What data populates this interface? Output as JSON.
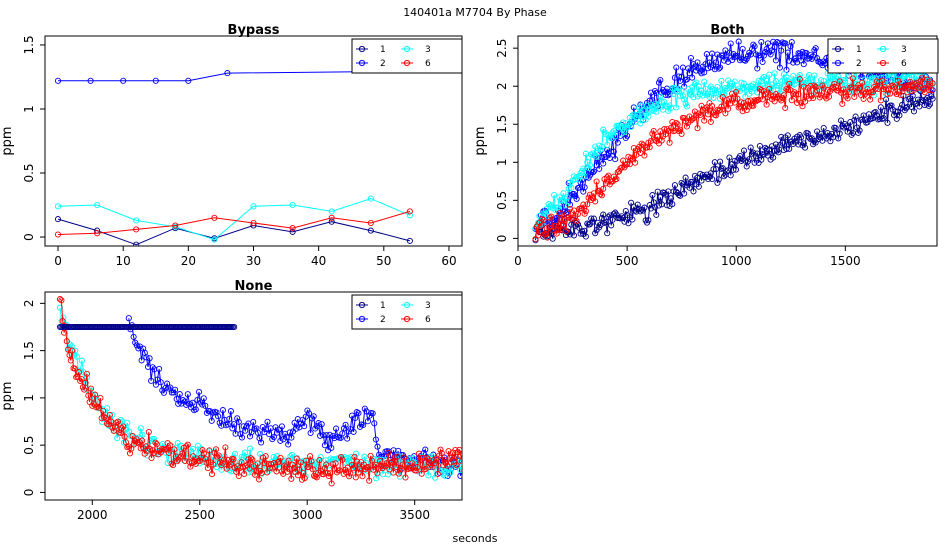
{
  "figure": {
    "main_title": "140401a    M7704   By Phase",
    "xlabel": "seconds"
  },
  "colors": {
    "1": "#00008b",
    "2": "#0000ff",
    "3": "#00ffff",
    "6": "#ff0000"
  },
  "chart_data": [
    {
      "id": "bypass",
      "type": "line",
      "title": "Bypass",
      "xlabel": "",
      "ylabel": "ppm",
      "xlim": [
        -2,
        62
      ],
      "ylim": [
        -0.07,
        1.57
      ],
      "xticks": [
        0,
        10,
        20,
        30,
        40,
        50,
        60
      ],
      "yticks": [
        0.0,
        0.5,
        1.0,
        1.5
      ],
      "legend": {
        "placement": "top-right",
        "entries": [
          "1",
          "3",
          "2",
          "6"
        ]
      },
      "series": [
        {
          "name": "1",
          "color": "#00008b",
          "line": true,
          "x": [
            0,
            6,
            12,
            18,
            24,
            30,
            36,
            42,
            48,
            54
          ],
          "y": [
            0.14,
            0.05,
            -0.06,
            0.07,
            -0.01,
            0.09,
            0.04,
            0.12,
            0.05,
            -0.03
          ]
        },
        {
          "name": "2",
          "color": "#0000ff",
          "line": true,
          "x": [
            0,
            5,
            10,
            15,
            20,
            26,
            62
          ],
          "y": [
            1.22,
            1.22,
            1.22,
            1.22,
            1.22,
            1.28,
            1.3
          ]
        },
        {
          "name": "3",
          "color": "#00ffff",
          "line": true,
          "x": [
            0,
            6,
            12,
            18,
            24,
            30,
            36,
            42,
            48,
            54
          ],
          "y": [
            0.24,
            0.25,
            0.13,
            0.08,
            -0.02,
            0.24,
            0.25,
            0.2,
            0.3,
            0.17
          ]
        },
        {
          "name": "6",
          "color": "#ff0000",
          "line": true,
          "x": [
            0,
            6,
            12,
            18,
            24,
            30,
            36,
            42,
            48,
            54
          ],
          "y": [
            0.02,
            0.03,
            0.06,
            0.09,
            0.15,
            0.11,
            0.07,
            0.15,
            0.11,
            0.2
          ]
        }
      ]
    },
    {
      "id": "both",
      "type": "scatter",
      "title": "Both",
      "xlabel": "",
      "ylabel": "ppm",
      "xlim": [
        0,
        1920
      ],
      "ylim": [
        -0.1,
        2.66
      ],
      "xticks": [
        0,
        500,
        1000,
        1500
      ],
      "yticks": [
        0.0,
        0.5,
        1.0,
        1.5,
        2.0,
        2.5
      ],
      "legend": {
        "placement": "top-right",
        "entries": [
          "1",
          "3",
          "2",
          "6"
        ]
      },
      "series": [
        {
          "name": "1",
          "color": "#00008b",
          "x_range": [
            80,
            1900
          ],
          "count": 300,
          "noise": 0.09,
          "trend_x": [
            80,
            400,
            600,
            900,
            1200,
            1500,
            1900
          ],
          "trend_y": [
            0.1,
            0.2,
            0.4,
            0.85,
            1.2,
            1.45,
            1.85
          ]
        },
        {
          "name": "2",
          "color": "#0000ff",
          "x_range": [
            80,
            1900
          ],
          "count": 300,
          "noise": 0.1,
          "trend_x": [
            80,
            200,
            400,
            600,
            800,
            1000,
            1200,
            1400,
            1600,
            1900
          ],
          "trend_y": [
            0.15,
            0.4,
            1.1,
            1.8,
            2.2,
            2.4,
            2.45,
            2.35,
            2.2,
            2.0
          ]
        },
        {
          "name": "3",
          "color": "#00ffff",
          "x_range": [
            80,
            1900
          ],
          "count": 300,
          "noise": 0.09,
          "trend_x": [
            80,
            200,
            400,
            600,
            800,
            1000,
            1400,
            1900
          ],
          "trend_y": [
            0.2,
            0.5,
            1.3,
            1.7,
            1.9,
            2.0,
            2.05,
            2.1
          ]
        },
        {
          "name": "6",
          "color": "#ff0000",
          "x_range": [
            80,
            1900
          ],
          "count": 300,
          "noise": 0.09,
          "trend_x": [
            80,
            250,
            400,
            600,
            800,
            1000,
            1300,
            1600,
            1900
          ],
          "trend_y": [
            0.1,
            0.3,
            0.7,
            1.25,
            1.6,
            1.8,
            1.9,
            1.95,
            2.0
          ]
        }
      ]
    },
    {
      "id": "none",
      "type": "scatter",
      "title": "None",
      "xlabel": "",
      "ylabel": "ppm",
      "xlim": [
        1780,
        3720
      ],
      "ylim": [
        -0.08,
        2.12
      ],
      "xticks": [
        2000,
        2500,
        3000,
        3500
      ],
      "yticks": [
        0.0,
        0.5,
        1.0,
        1.5,
        2.0
      ],
      "legend": {
        "placement": "top-right",
        "entries": [
          "1",
          "3",
          "2",
          "6"
        ]
      },
      "flat_segment": {
        "series": "1",
        "x_start": 1850,
        "x_end": 2660,
        "y": 1.75
      },
      "series": [
        {
          "name": "2",
          "color": "#0000ff",
          "x_range": [
            2170,
            3720
          ],
          "count": 210,
          "noise": 0.07,
          "trend_x": [
            2170,
            2200,
            2300,
            2400,
            2550,
            2700,
            2900,
            3000,
            3100,
            3300,
            3330,
            3500,
            3720
          ],
          "trend_y": [
            1.85,
            1.6,
            1.2,
            1.0,
            0.85,
            0.7,
            0.6,
            0.8,
            0.55,
            0.85,
            0.4,
            0.35,
            0.3
          ]
        },
        {
          "name": "3",
          "color": "#00ffff",
          "x_range": [
            1850,
            3720
          ],
          "count": 240,
          "noise": 0.08,
          "trend_x": [
            1850,
            1900,
            2000,
            2100,
            2200,
            2400,
            2700,
            3000,
            3720
          ],
          "trend_y": [
            2.0,
            1.5,
            1.0,
            0.75,
            0.55,
            0.4,
            0.32,
            0.3,
            0.28
          ]
        },
        {
          "name": "6",
          "color": "#ff0000",
          "x_range": [
            1850,
            3720
          ],
          "count": 300,
          "noise": 0.08,
          "trend_x": [
            1850,
            1900,
            2000,
            2100,
            2200,
            2400,
            2700,
            3000,
            3500,
            3720
          ],
          "trend_y": [
            2.0,
            1.4,
            1.0,
            0.7,
            0.5,
            0.4,
            0.3,
            0.25,
            0.3,
            0.35
          ]
        }
      ]
    }
  ]
}
